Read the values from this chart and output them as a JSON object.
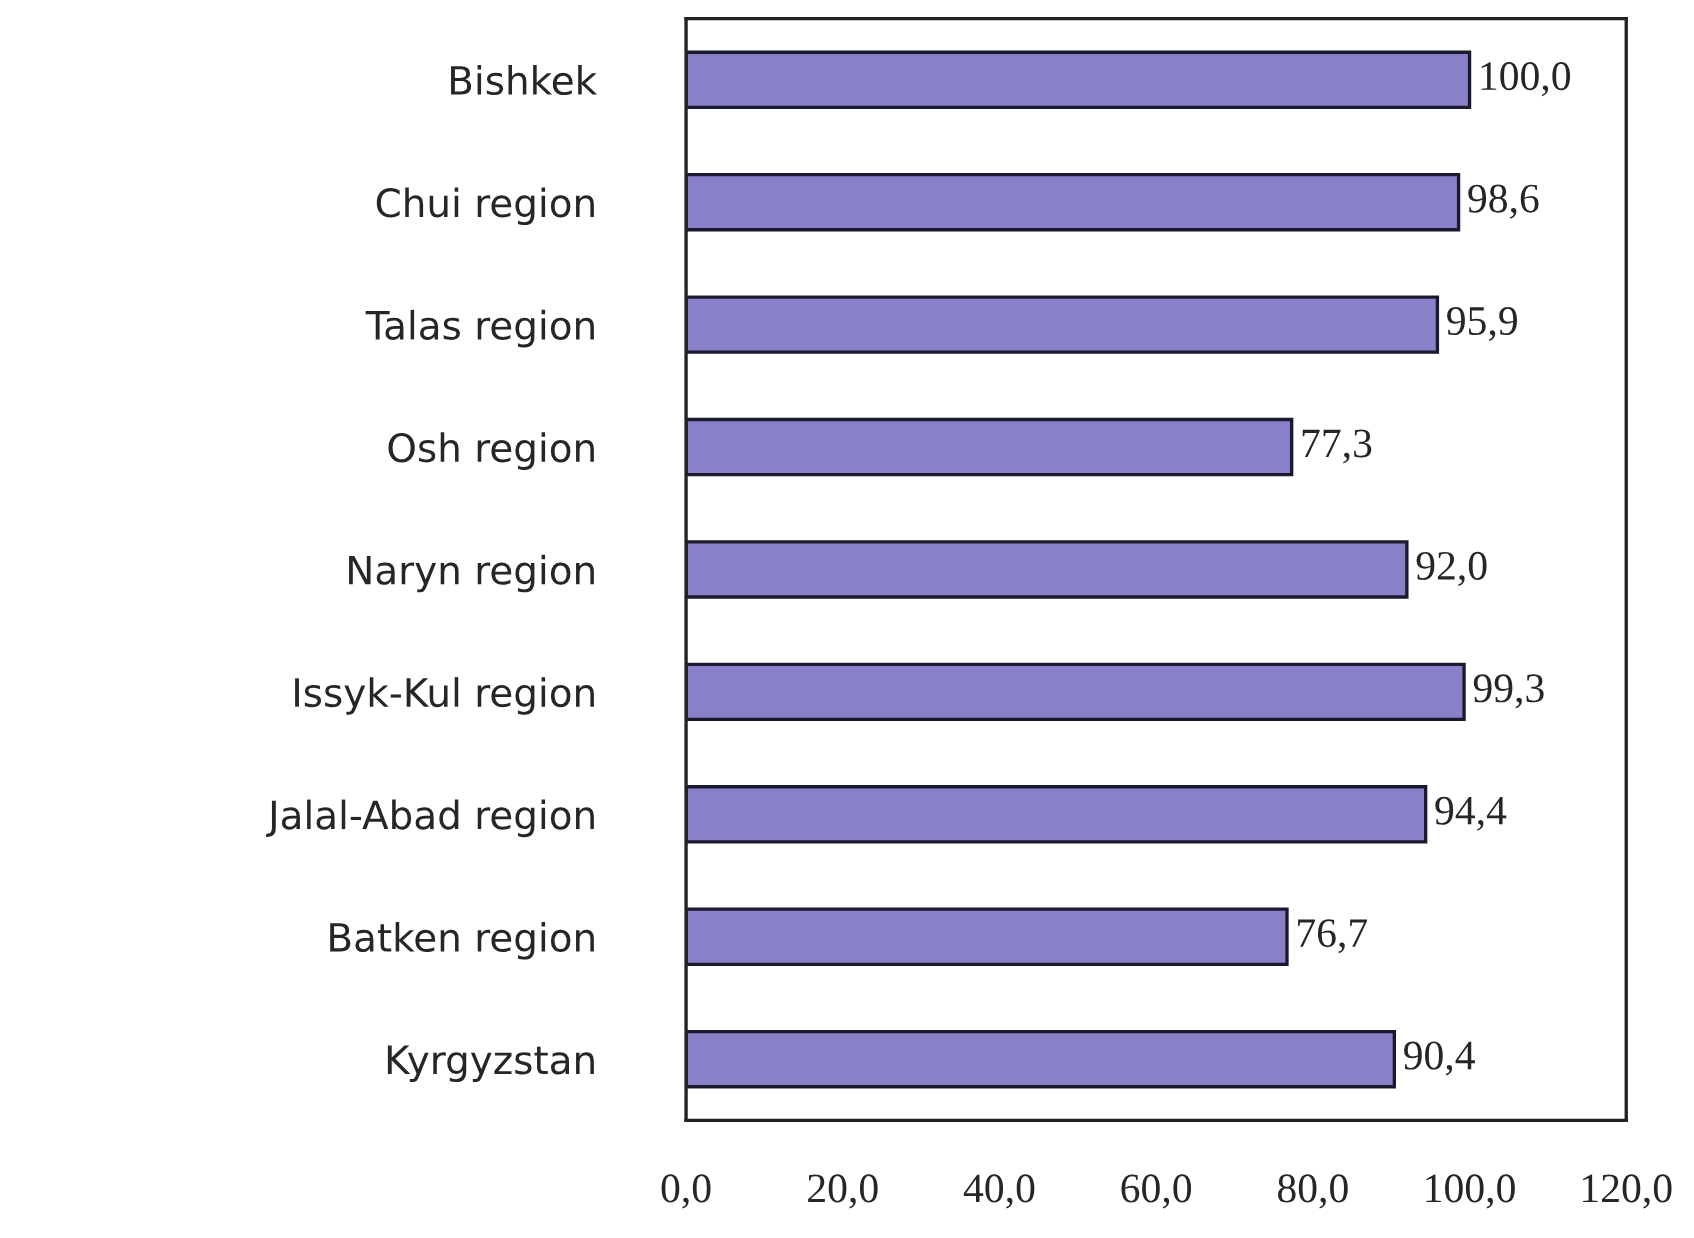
{
  "chart_data": {
    "type": "bar",
    "orientation": "horizontal",
    "categories": [
      "Bishkek",
      "Chui region",
      "Talas region",
      "Osh region",
      "Naryn region",
      "Issyk-Kul region",
      "Jalal-Abad region",
      "Batken region",
      "Kyrgyzstan"
    ],
    "values": [
      100.0,
      98.6,
      95.9,
      77.3,
      92.0,
      99.3,
      94.4,
      76.7,
      90.4
    ],
    "value_labels": [
      "100,0",
      "98,6",
      "95,9",
      "77,3",
      "92,0",
      "99,3",
      "94,4",
      "76,7",
      "90,4"
    ],
    "color": "#8880c8",
    "xlim": [
      0,
      120
    ],
    "xticks": [
      {
        "value": 0,
        "label": "0,0"
      },
      {
        "value": 20,
        "label": "20,0"
      },
      {
        "value": 40,
        "label": "40,0"
      },
      {
        "value": 60,
        "label": "60,0"
      },
      {
        "value": 80,
        "label": "80,0"
      },
      {
        "value": 100,
        "label": "100,0"
      },
      {
        "value": 120,
        "label": "120,0"
      }
    ],
    "grid": false,
    "legend": false
  }
}
